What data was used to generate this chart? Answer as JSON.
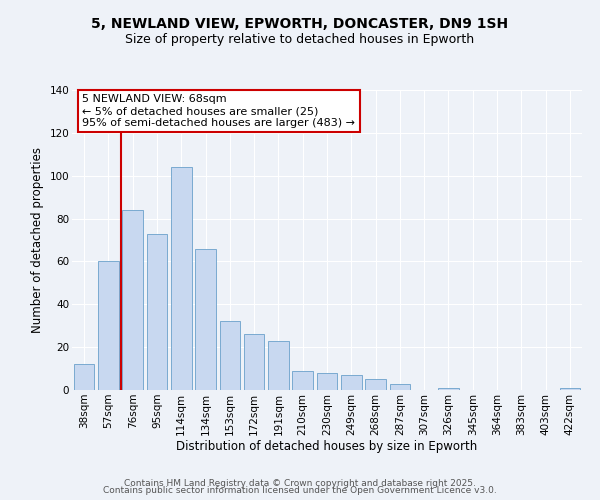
{
  "title": "5, NEWLAND VIEW, EPWORTH, DONCASTER, DN9 1SH",
  "subtitle": "Size of property relative to detached houses in Epworth",
  "xlabel": "Distribution of detached houses by size in Epworth",
  "ylabel": "Number of detached properties",
  "categories": [
    "38sqm",
    "57sqm",
    "76sqm",
    "95sqm",
    "114sqm",
    "134sqm",
    "153sqm",
    "172sqm",
    "191sqm",
    "210sqm",
    "230sqm",
    "249sqm",
    "268sqm",
    "287sqm",
    "307sqm",
    "326sqm",
    "345sqm",
    "364sqm",
    "383sqm",
    "403sqm",
    "422sqm"
  ],
  "values": [
    12,
    60,
    84,
    73,
    104,
    66,
    32,
    26,
    23,
    9,
    8,
    7,
    5,
    3,
    0,
    1,
    0,
    0,
    0,
    0,
    1
  ],
  "bar_color": "#c8d8f0",
  "bar_edge_color": "#7aaad0",
  "ylim": [
    0,
    140
  ],
  "yticks": [
    0,
    20,
    40,
    60,
    80,
    100,
    120,
    140
  ],
  "annotation_title": "5 NEWLAND VIEW: 68sqm",
  "annotation_line1": "← 5% of detached houses are smaller (25)",
  "annotation_line2": "95% of semi-detached houses are larger (483) →",
  "footer1": "Contains HM Land Registry data © Crown copyright and database right 2025.",
  "footer2": "Contains public sector information licensed under the Open Government Licence v3.0.",
  "bg_color": "#eef2f8",
  "plot_bg_color": "#eef2f8",
  "annotation_box_color": "#ffffff",
  "annotation_box_edge": "#cc0000",
  "red_line_color": "#cc0000",
  "title_fontsize": 10,
  "subtitle_fontsize": 9,
  "axis_label_fontsize": 8.5,
  "tick_fontsize": 7.5,
  "annotation_fontsize": 8,
  "footer_fontsize": 6.5
}
